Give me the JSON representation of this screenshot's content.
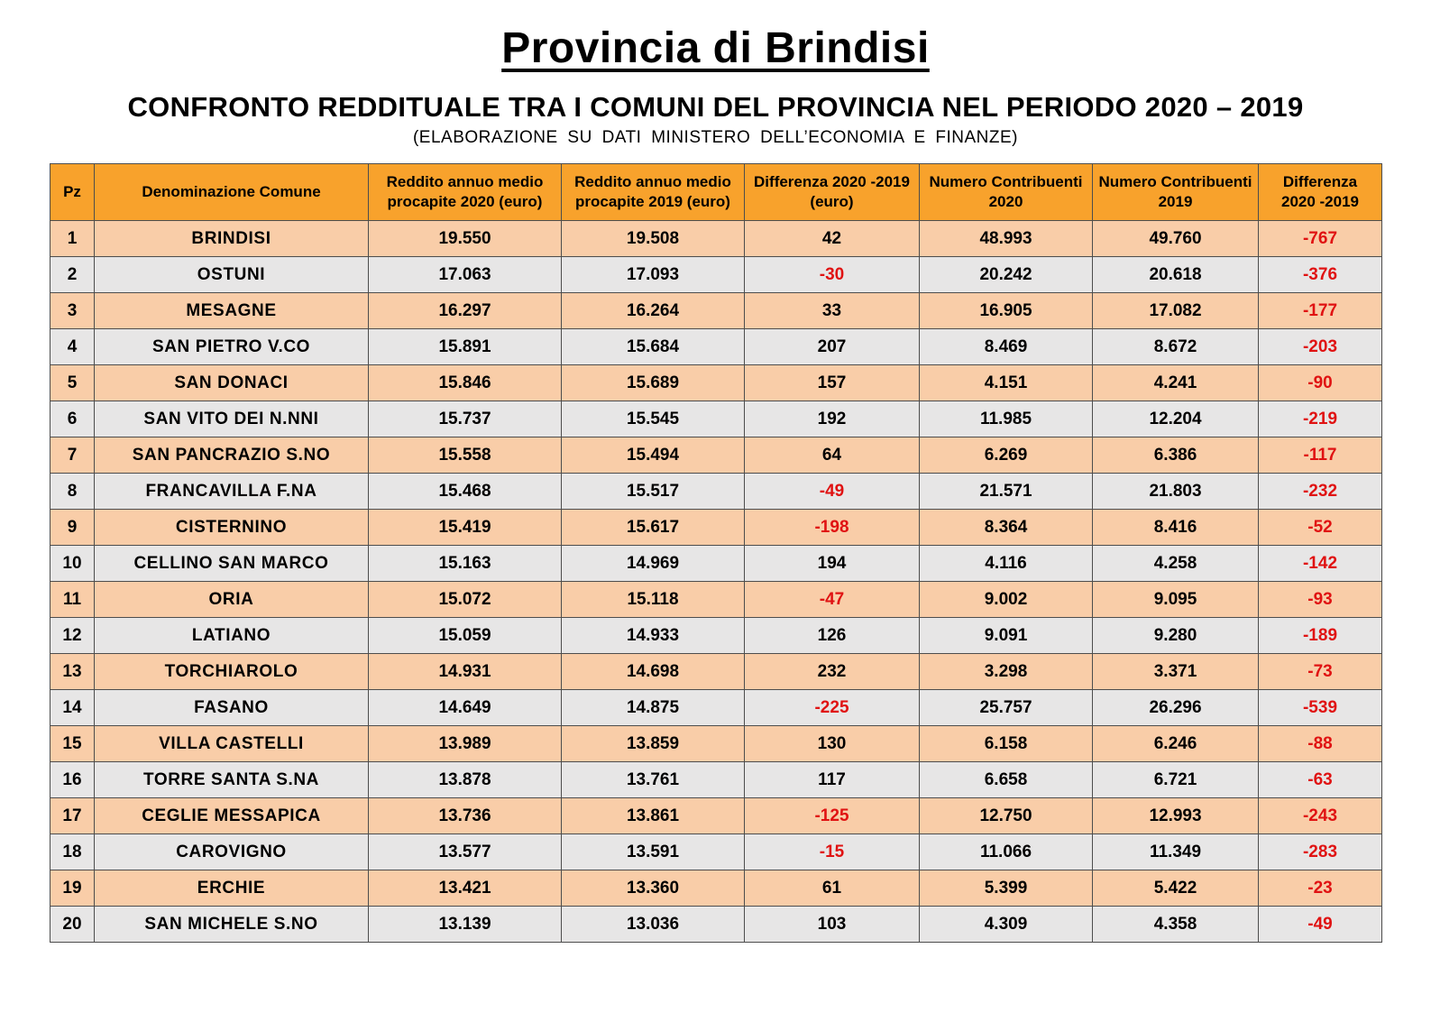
{
  "header": {
    "title": "Provincia di Brindisi",
    "subtitle": "CONFRONTO REDDITUALE TRA I COMUNI DEL PROVINCIA NEL PERIODO 2020 – 2019",
    "note": "(ELABORAZIONE SU DATI MINISTERO DELL’ECONOMIA E FINANZE)"
  },
  "colors": {
    "header_fill": "#F8A22C",
    "row_odd_fill": "#F9CDA8",
    "row_even_fill": "#E7E6E6",
    "negative_text": "#E01212",
    "border": "#4D4D4D",
    "text": "#000000"
  },
  "table": {
    "columns": [
      "Pz",
      "Denominazione Comune",
      "Reddito annuo medio\nprocapite 2020 (euro)",
      "Reddito annuo medio\nprocapite 2019 (euro)",
      "Differenza  2020 -2019\n(euro)",
      "Numero Contribuenti\n2020",
      "Numero Contribuenti\n2019",
      "Differenza\n2020 -2019"
    ],
    "rows": [
      {
        "pz": "1",
        "comune": "BRINDISI",
        "reddito_2020": "19.550",
        "reddito_2019": "19.508",
        "differenza_reddito": "42",
        "contribuenti_2020": "48.993",
        "contribuenti_2019": "49.760",
        "differenza_contribuenti": "-767"
      },
      {
        "pz": "2",
        "comune": "OSTUNI",
        "reddito_2020": "17.063",
        "reddito_2019": "17.093",
        "differenza_reddito": "-30",
        "contribuenti_2020": "20.242",
        "contribuenti_2019": "20.618",
        "differenza_contribuenti": "-376"
      },
      {
        "pz": "3",
        "comune": "MESAGNE",
        "reddito_2020": "16.297",
        "reddito_2019": "16.264",
        "differenza_reddito": "33",
        "contribuenti_2020": "16.905",
        "contribuenti_2019": "17.082",
        "differenza_contribuenti": "-177"
      },
      {
        "pz": "4",
        "comune": "SAN PIETRO V.CO",
        "reddito_2020": "15.891",
        "reddito_2019": "15.684",
        "differenza_reddito": "207",
        "contribuenti_2020": "8.469",
        "contribuenti_2019": "8.672",
        "differenza_contribuenti": "-203"
      },
      {
        "pz": "5",
        "comune": "SAN DONACI",
        "reddito_2020": "15.846",
        "reddito_2019": "15.689",
        "differenza_reddito": "157",
        "contribuenti_2020": "4.151",
        "contribuenti_2019": "4.241",
        "differenza_contribuenti": "-90"
      },
      {
        "pz": "6",
        "comune": "SAN VITO DEI N.NNI",
        "reddito_2020": "15.737",
        "reddito_2019": "15.545",
        "differenza_reddito": "192",
        "contribuenti_2020": "11.985",
        "contribuenti_2019": "12.204",
        "differenza_contribuenti": "-219"
      },
      {
        "pz": "7",
        "comune": "SAN PANCRAZIO S.NO",
        "reddito_2020": "15.558",
        "reddito_2019": "15.494",
        "differenza_reddito": "64",
        "contribuenti_2020": "6.269",
        "contribuenti_2019": "6.386",
        "differenza_contribuenti": "-117"
      },
      {
        "pz": "8",
        "comune": "FRANCAVILLA F.NA",
        "reddito_2020": "15.468",
        "reddito_2019": "15.517",
        "differenza_reddito": "-49",
        "contribuenti_2020": "21.571",
        "contribuenti_2019": "21.803",
        "differenza_contribuenti": "-232"
      },
      {
        "pz": "9",
        "comune": "CISTERNINO",
        "reddito_2020": "15.419",
        "reddito_2019": "15.617",
        "differenza_reddito": "-198",
        "contribuenti_2020": "8.364",
        "contribuenti_2019": "8.416",
        "differenza_contribuenti": "-52"
      },
      {
        "pz": "10",
        "comune": "CELLINO SAN MARCO",
        "reddito_2020": "15.163",
        "reddito_2019": "14.969",
        "differenza_reddito": "194",
        "contribuenti_2020": "4.116",
        "contribuenti_2019": "4.258",
        "differenza_contribuenti": "-142"
      },
      {
        "pz": "11",
        "comune": "ORIA",
        "reddito_2020": "15.072",
        "reddito_2019": "15.118",
        "differenza_reddito": "-47",
        "contribuenti_2020": "9.002",
        "contribuenti_2019": "9.095",
        "differenza_contribuenti": "-93"
      },
      {
        "pz": "12",
        "comune": "LATIANO",
        "reddito_2020": "15.059",
        "reddito_2019": "14.933",
        "differenza_reddito": "126",
        "contribuenti_2020": "9.091",
        "contribuenti_2019": "9.280",
        "differenza_contribuenti": "-189"
      },
      {
        "pz": "13",
        "comune": "TORCHIAROLO",
        "reddito_2020": "14.931",
        "reddito_2019": "14.698",
        "differenza_reddito": "232",
        "contribuenti_2020": "3.298",
        "contribuenti_2019": "3.371",
        "differenza_contribuenti": "-73"
      },
      {
        "pz": "14",
        "comune": "FASANO",
        "reddito_2020": "14.649",
        "reddito_2019": "14.875",
        "differenza_reddito": "-225",
        "contribuenti_2020": "25.757",
        "contribuenti_2019": "26.296",
        "differenza_contribuenti": "-539"
      },
      {
        "pz": "15",
        "comune": "VILLA CASTELLI",
        "reddito_2020": "13.989",
        "reddito_2019": "13.859",
        "differenza_reddito": "130",
        "contribuenti_2020": "6.158",
        "contribuenti_2019": "6.246",
        "differenza_contribuenti": "-88"
      },
      {
        "pz": "16",
        "comune": "TORRE SANTA S.NA",
        "reddito_2020": "13.878",
        "reddito_2019": "13.761",
        "differenza_reddito": "117",
        "contribuenti_2020": "6.658",
        "contribuenti_2019": "6.721",
        "differenza_contribuenti": "-63"
      },
      {
        "pz": "17",
        "comune": "CEGLIE MESSAPICA",
        "reddito_2020": "13.736",
        "reddito_2019": "13.861",
        "differenza_reddito": "-125",
        "contribuenti_2020": "12.750",
        "contribuenti_2019": "12.993",
        "differenza_contribuenti": "-243"
      },
      {
        "pz": "18",
        "comune": "CAROVIGNO",
        "reddito_2020": "13.577",
        "reddito_2019": "13.591",
        "differenza_reddito": "-15",
        "contribuenti_2020": "11.066",
        "contribuenti_2019": "11.349",
        "differenza_contribuenti": "-283"
      },
      {
        "pz": "19",
        "comune": "ERCHIE",
        "reddito_2020": "13.421",
        "reddito_2019": "13.360",
        "differenza_reddito": "61",
        "contribuenti_2020": "5.399",
        "contribuenti_2019": "5.422",
        "differenza_contribuenti": "-23"
      },
      {
        "pz": "20",
        "comune": "SAN MICHELE S.NO",
        "reddito_2020": "13.139",
        "reddito_2019": "13.036",
        "differenza_reddito": "103",
        "contribuenti_2020": "4.309",
        "contribuenti_2019": "4.358",
        "differenza_contribuenti": "-49"
      }
    ]
  }
}
